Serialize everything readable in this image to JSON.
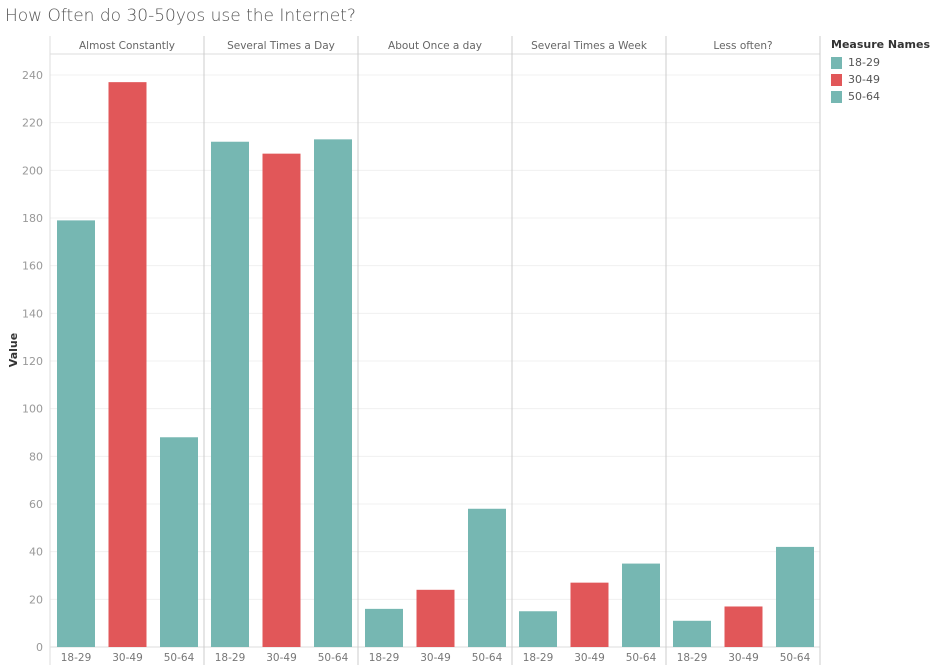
{
  "chart_data": {
    "type": "bar",
    "title": "How Often do 30-50yos use the Internet?",
    "ylabel": "Value",
    "ylim": [
      0,
      250
    ],
    "yticks": [
      0,
      20,
      40,
      60,
      80,
      100,
      120,
      140,
      160,
      180,
      200,
      220,
      240
    ],
    "grid": true,
    "panels": [
      "Almost Constantly",
      "Several Times a Day",
      "About Once a day",
      "Several Times a Week",
      "Less often?"
    ],
    "categories": [
      "18-29",
      "30-49",
      "50-64"
    ],
    "values": [
      [
        179,
        237,
        88
      ],
      [
        212,
        207,
        213
      ],
      [
        16,
        24,
        58
      ],
      [
        15,
        27,
        35
      ],
      [
        11,
        17,
        42
      ]
    ],
    "colors": {
      "18-29": "#76b7b2",
      "30-49": "#e15759",
      "50-64": "#76b7b2"
    },
    "legend": {
      "title": "Measure Names",
      "position": "right",
      "items": [
        "18-29",
        "30-49",
        "50-64"
      ]
    }
  }
}
